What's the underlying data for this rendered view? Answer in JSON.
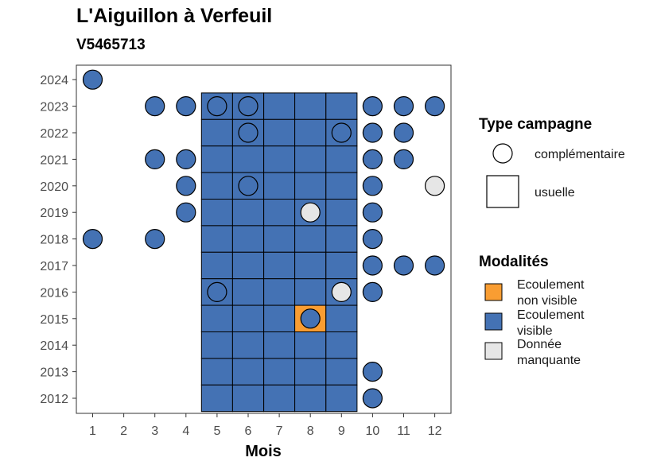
{
  "title": "L'Aiguillon à Verfeuil",
  "subtitle": "V5465713",
  "chart_data": {
    "type": "heatmap",
    "title": "L'Aiguillon à Verfeuil",
    "subtitle": "V5465713",
    "xlabel": "Mois",
    "ylabel": "",
    "x_ticks": [
      "1",
      "2",
      "3",
      "4",
      "5",
      "6",
      "7",
      "8",
      "9",
      "10",
      "11",
      "12"
    ],
    "y_ticks": [
      "2012",
      "2013",
      "2014",
      "2015",
      "2016",
      "2017",
      "2018",
      "2019",
      "2020",
      "2021",
      "2022",
      "2023",
      "2024"
    ],
    "xlim": [
      1,
      12
    ],
    "ylim": [
      2012,
      2024
    ],
    "colors": {
      "Ecoulement non visible": "#f99d32",
      "Ecoulement visible": "#4472b4",
      "Donnée manquante": "#e6e6e6"
    },
    "legend_type": {
      "title": "Type campagne",
      "entries": [
        {
          "label": "complémentaire",
          "shape": "circle"
        },
        {
          "label": "usuelle",
          "shape": "square"
        }
      ]
    },
    "legend_modalites": {
      "title": "Modalités",
      "entries": [
        {
          "label": [
            "Ecoulement",
            "non visible"
          ],
          "color": "#f99d32"
        },
        {
          "label": [
            "Ecoulement",
            "visible"
          ],
          "color": "#4472b4"
        },
        {
          "label": [
            "Donnée",
            "manquante"
          ],
          "color": "#e6e6e6"
        }
      ]
    },
    "usuelle": [
      {
        "year": 2023,
        "month": 5,
        "value": "Ecoulement visible"
      },
      {
        "year": 2023,
        "month": 6,
        "value": "Ecoulement visible"
      },
      {
        "year": 2023,
        "month": 7,
        "value": "Ecoulement visible"
      },
      {
        "year": 2023,
        "month": 8,
        "value": "Ecoulement visible"
      },
      {
        "year": 2023,
        "month": 9,
        "value": "Ecoulement visible"
      },
      {
        "year": 2022,
        "month": 5,
        "value": "Ecoulement visible"
      },
      {
        "year": 2022,
        "month": 6,
        "value": "Ecoulement visible"
      },
      {
        "year": 2022,
        "month": 7,
        "value": "Ecoulement visible"
      },
      {
        "year": 2022,
        "month": 8,
        "value": "Ecoulement visible"
      },
      {
        "year": 2022,
        "month": 9,
        "value": "Ecoulement visible"
      },
      {
        "year": 2021,
        "month": 5,
        "value": "Ecoulement visible"
      },
      {
        "year": 2021,
        "month": 6,
        "value": "Ecoulement visible"
      },
      {
        "year": 2021,
        "month": 7,
        "value": "Ecoulement visible"
      },
      {
        "year": 2021,
        "month": 8,
        "value": "Ecoulement visible"
      },
      {
        "year": 2021,
        "month": 9,
        "value": "Ecoulement visible"
      },
      {
        "year": 2020,
        "month": 5,
        "value": "Ecoulement visible"
      },
      {
        "year": 2020,
        "month": 6,
        "value": "Ecoulement visible"
      },
      {
        "year": 2020,
        "month": 7,
        "value": "Ecoulement visible"
      },
      {
        "year": 2020,
        "month": 8,
        "value": "Ecoulement visible"
      },
      {
        "year": 2020,
        "month": 9,
        "value": "Ecoulement visible"
      },
      {
        "year": 2019,
        "month": 5,
        "value": "Ecoulement visible"
      },
      {
        "year": 2019,
        "month": 6,
        "value": "Ecoulement visible"
      },
      {
        "year": 2019,
        "month": 7,
        "value": "Ecoulement visible"
      },
      {
        "year": 2019,
        "month": 8,
        "value": "Ecoulement visible"
      },
      {
        "year": 2019,
        "month": 9,
        "value": "Ecoulement visible"
      },
      {
        "year": 2018,
        "month": 5,
        "value": "Ecoulement visible"
      },
      {
        "year": 2018,
        "month": 6,
        "value": "Ecoulement visible"
      },
      {
        "year": 2018,
        "month": 7,
        "value": "Ecoulement visible"
      },
      {
        "year": 2018,
        "month": 8,
        "value": "Ecoulement visible"
      },
      {
        "year": 2018,
        "month": 9,
        "value": "Ecoulement visible"
      },
      {
        "year": 2017,
        "month": 5,
        "value": "Ecoulement visible"
      },
      {
        "year": 2017,
        "month": 6,
        "value": "Ecoulement visible"
      },
      {
        "year": 2017,
        "month": 7,
        "value": "Ecoulement visible"
      },
      {
        "year": 2017,
        "month": 8,
        "value": "Ecoulement visible"
      },
      {
        "year": 2017,
        "month": 9,
        "value": "Ecoulement visible"
      },
      {
        "year": 2016,
        "month": 5,
        "value": "Ecoulement visible"
      },
      {
        "year": 2016,
        "month": 6,
        "value": "Ecoulement visible"
      },
      {
        "year": 2016,
        "month": 7,
        "value": "Ecoulement visible"
      },
      {
        "year": 2016,
        "month": 8,
        "value": "Ecoulement visible"
      },
      {
        "year": 2016,
        "month": 9,
        "value": "Ecoulement visible"
      },
      {
        "year": 2015,
        "month": 5,
        "value": "Ecoulement visible"
      },
      {
        "year": 2015,
        "month": 6,
        "value": "Ecoulement visible"
      },
      {
        "year": 2015,
        "month": 7,
        "value": "Ecoulement visible"
      },
      {
        "year": 2015,
        "month": 8,
        "value": "Ecoulement non visible"
      },
      {
        "year": 2015,
        "month": 9,
        "value": "Ecoulement visible"
      },
      {
        "year": 2014,
        "month": 5,
        "value": "Ecoulement visible"
      },
      {
        "year": 2014,
        "month": 6,
        "value": "Ecoulement visible"
      },
      {
        "year": 2014,
        "month": 7,
        "value": "Ecoulement visible"
      },
      {
        "year": 2014,
        "month": 8,
        "value": "Ecoulement visible"
      },
      {
        "year": 2014,
        "month": 9,
        "value": "Ecoulement visible"
      },
      {
        "year": 2013,
        "month": 5,
        "value": "Ecoulement visible"
      },
      {
        "year": 2013,
        "month": 6,
        "value": "Ecoulement visible"
      },
      {
        "year": 2013,
        "month": 7,
        "value": "Ecoulement visible"
      },
      {
        "year": 2013,
        "month": 8,
        "value": "Ecoulement visible"
      },
      {
        "year": 2013,
        "month": 9,
        "value": "Ecoulement visible"
      },
      {
        "year": 2012,
        "month": 5,
        "value": "Ecoulement visible"
      },
      {
        "year": 2012,
        "month": 6,
        "value": "Ecoulement visible"
      },
      {
        "year": 2012,
        "month": 7,
        "value": "Ecoulement visible"
      },
      {
        "year": 2012,
        "month": 8,
        "value": "Ecoulement visible"
      },
      {
        "year": 2012,
        "month": 9,
        "value": "Ecoulement visible"
      }
    ],
    "complementaire": [
      {
        "year": 2024,
        "month": 1,
        "value": "Ecoulement visible"
      },
      {
        "year": 2023,
        "month": 3,
        "value": "Ecoulement visible"
      },
      {
        "year": 2023,
        "month": 4,
        "value": "Ecoulement visible"
      },
      {
        "year": 2023,
        "month": 5,
        "value": "Ecoulement visible"
      },
      {
        "year": 2023,
        "month": 6,
        "value": "Ecoulement visible"
      },
      {
        "year": 2023,
        "month": 10,
        "value": "Ecoulement visible"
      },
      {
        "year": 2023,
        "month": 11,
        "value": "Ecoulement visible"
      },
      {
        "year": 2023,
        "month": 12,
        "value": "Ecoulement visible"
      },
      {
        "year": 2022,
        "month": 6,
        "value": "Ecoulement visible"
      },
      {
        "year": 2022,
        "month": 9,
        "value": "Ecoulement visible"
      },
      {
        "year": 2022,
        "month": 10,
        "value": "Ecoulement visible"
      },
      {
        "year": 2022,
        "month": 11,
        "value": "Ecoulement visible"
      },
      {
        "year": 2021,
        "month": 3,
        "value": "Ecoulement visible"
      },
      {
        "year": 2021,
        "month": 4,
        "value": "Ecoulement visible"
      },
      {
        "year": 2021,
        "month": 10,
        "value": "Ecoulement visible"
      },
      {
        "year": 2021,
        "month": 11,
        "value": "Ecoulement visible"
      },
      {
        "year": 2020,
        "month": 4,
        "value": "Ecoulement visible"
      },
      {
        "year": 2020,
        "month": 6,
        "value": "Ecoulement visible"
      },
      {
        "year": 2020,
        "month": 10,
        "value": "Ecoulement visible"
      },
      {
        "year": 2020,
        "month": 12,
        "value": "Donnée manquante"
      },
      {
        "year": 2019,
        "month": 4,
        "value": "Ecoulement visible"
      },
      {
        "year": 2019,
        "month": 8,
        "value": "Donnée manquante"
      },
      {
        "year": 2019,
        "month": 10,
        "value": "Ecoulement visible"
      },
      {
        "year": 2018,
        "month": 1,
        "value": "Ecoulement visible"
      },
      {
        "year": 2018,
        "month": 3,
        "value": "Ecoulement visible"
      },
      {
        "year": 2018,
        "month": 10,
        "value": "Ecoulement visible"
      },
      {
        "year": 2017,
        "month": 10,
        "value": "Ecoulement visible"
      },
      {
        "year": 2017,
        "month": 11,
        "value": "Ecoulement visible"
      },
      {
        "year": 2017,
        "month": 12,
        "value": "Ecoulement visible"
      },
      {
        "year": 2016,
        "month": 5,
        "value": "Ecoulement visible"
      },
      {
        "year": 2016,
        "month": 9,
        "value": "Donnée manquante"
      },
      {
        "year": 2016,
        "month": 10,
        "value": "Ecoulement visible"
      },
      {
        "year": 2015,
        "month": 8,
        "value": "Ecoulement visible"
      },
      {
        "year": 2013,
        "month": 10,
        "value": "Ecoulement visible"
      },
      {
        "year": 2012,
        "month": 10,
        "value": "Ecoulement visible"
      }
    ]
  }
}
